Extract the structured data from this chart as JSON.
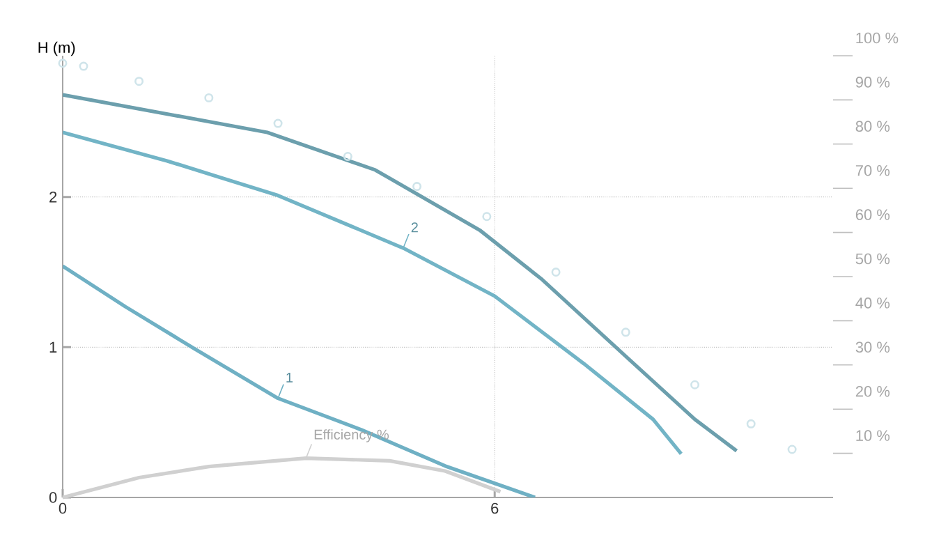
{
  "chart_data": {
    "type": "line",
    "ylabel": "H (m)",
    "xlim": [
      0,
      10.7
    ],
    "xticks": [
      0,
      6
    ],
    "ylim": [
      0,
      2.94
    ],
    "yticks": [
      0,
      1,
      2
    ],
    "y2lim": [
      0,
      100
    ],
    "y2ticks": [
      {
        "value": 10,
        "label": "10 %"
      },
      {
        "value": 20,
        "label": "20 %"
      },
      {
        "value": 30,
        "label": "30 %"
      },
      {
        "value": 40,
        "label": "40 %"
      },
      {
        "value": 50,
        "label": "50 %"
      },
      {
        "value": 60,
        "label": "60 %"
      },
      {
        "value": 70,
        "label": "70 %"
      },
      {
        "value": 80,
        "label": "80 %"
      },
      {
        "value": 90,
        "label": "90 %"
      },
      {
        "value": 100,
        "label": "100 %"
      }
    ],
    "grid": true,
    "legend": false,
    "line_style": "solid",
    "series": [
      {
        "type": "scatter",
        "marker": "circle",
        "color": "#cfe4ea",
        "x": [
          0,
          0.29,
          1.06,
          2.03,
          2.99,
          3.96,
          4.92,
          5.89,
          6.85,
          7.82,
          8.78,
          9.56,
          10.13
        ],
        "values": [
          2.89,
          2.87,
          2.77,
          2.66,
          2.49,
          2.27,
          2.07,
          1.87,
          1.5,
          1.1,
          0.75,
          0.49,
          0.32
        ]
      },
      {
        "color": "#6c9fad",
        "x": [
          0,
          2.84,
          4.34,
          5.79,
          6.66,
          7.82,
          8.78,
          9.36
        ],
        "values": [
          2.68,
          2.43,
          2.18,
          1.78,
          1.45,
          0.94,
          0.52,
          0.31
        ]
      },
      {
        "name": "2",
        "color": "#72b4c6",
        "x": [
          0,
          1.45,
          2.99,
          4.73,
          6,
          7.24,
          8.2,
          8.59
        ],
        "values": [
          2.43,
          2.24,
          2.01,
          1.66,
          1.34,
          0.89,
          0.52,
          0.29
        ]
      },
      {
        "name": "1",
        "color": "#6fb0c4",
        "x": [
          0,
          0.87,
          1.83,
          2.99,
          4.15,
          5.31,
          6.56
        ],
        "values": [
          1.54,
          1.27,
          0.99,
          0.66,
          0.45,
          0.21,
          0
        ]
      },
      {
        "name": "Efficiency %",
        "axis": "y2",
        "color": "#d0d0d0",
        "x": [
          0,
          1.06,
          2.03,
          3.38,
          4.54,
          5.31,
          6.08
        ],
        "values": [
          0,
          4.5,
          7,
          8.9,
          8.3,
          6,
          1.3
        ]
      }
    ]
  }
}
